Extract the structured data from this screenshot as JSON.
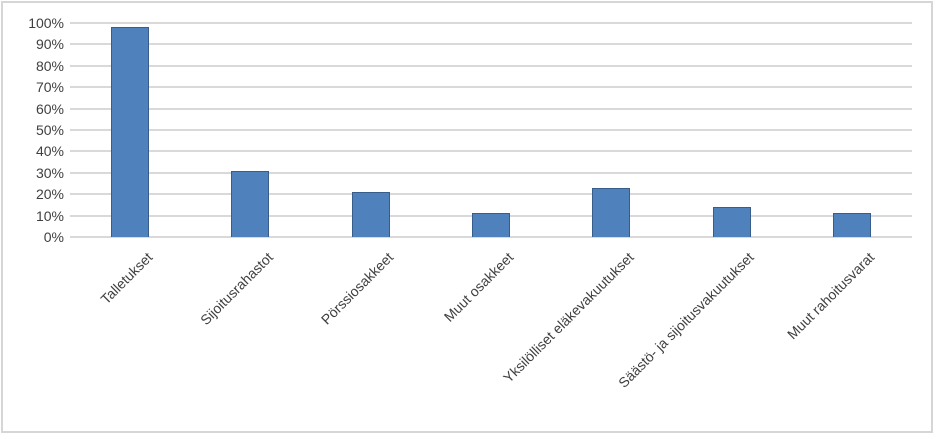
{
  "chart_data": {
    "type": "bar",
    "categories": [
      "Talletukset",
      "Sijoitusrahastot",
      "Pörssiosakkeet",
      "Muut osakkeet",
      "Yksilölliset eläkevakuutukset",
      "Säästö- ja sijoitusvakuutukset",
      "Muut rahoitusvarat"
    ],
    "values": [
      98,
      31,
      21,
      11,
      23,
      14,
      11
    ],
    "title": "",
    "xlabel": "",
    "ylabel": "",
    "ylim": [
      0,
      100
    ],
    "ytick_step": 10,
    "ytick_labels": [
      "0%",
      "10%",
      "20%",
      "30%",
      "40%",
      "50%",
      "60%",
      "70%",
      "80%",
      "90%",
      "100%"
    ],
    "grid": true,
    "legend": false,
    "x_label_rotation_deg": 45,
    "colors": {
      "bar_fill": "#4f81bd",
      "bar_border": "#385d8a",
      "gridline": "#d9d9d9",
      "axis_text": "#3f3f3f",
      "frame_border": "#d6d6d6",
      "background": "#ffffff"
    }
  }
}
